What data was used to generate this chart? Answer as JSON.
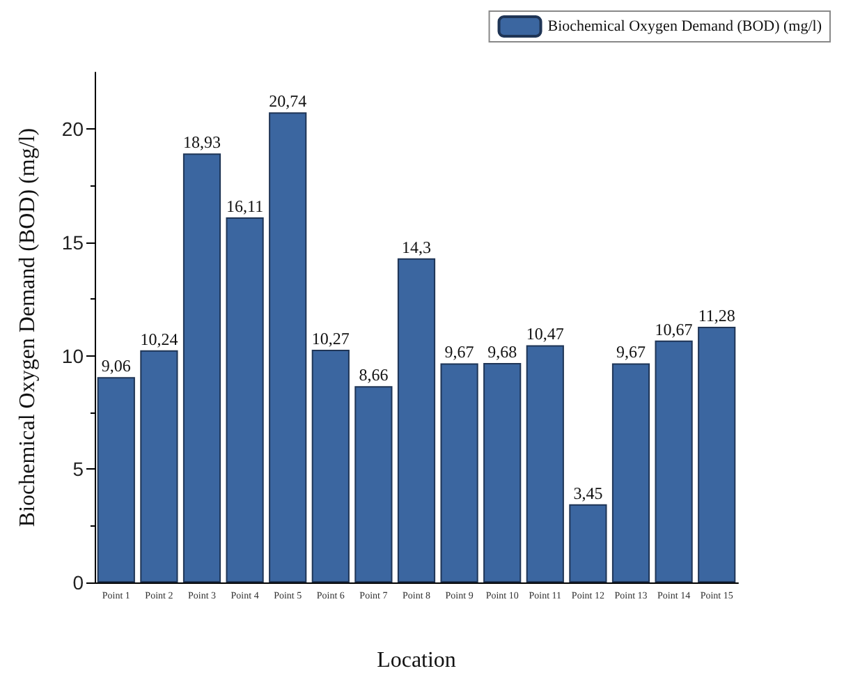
{
  "chart_data": {
    "type": "bar",
    "xlabel": "Location",
    "ylabel": "Biochemical Oxygen Demand (BOD) (mg/l)",
    "categories": [
      "Point 1",
      "Point 2",
      "Point 3",
      "Point 4",
      "Point 5",
      "Point 6",
      "Point 7",
      "Point 8",
      "Point 9",
      "Point 10",
      "Point 11",
      "Point 12",
      "Point 13",
      "Point 14",
      "Point 15"
    ],
    "series": [
      {
        "name": "Biochemical Oxygen Demand (BOD) (mg/l)",
        "color": "#3b66a0",
        "values": [
          9.06,
          10.24,
          18.93,
          16.11,
          20.74,
          10.27,
          8.66,
          14.3,
          9.67,
          9.68,
          10.47,
          3.45,
          9.67,
          10.67,
          11.28
        ],
        "value_labels": [
          "9,06",
          "10,24",
          "18,93",
          "16,11",
          "20,74",
          "10,27",
          "8,66",
          "14,3",
          "9,67",
          "9,68",
          "10,47",
          "3,45",
          "9,67",
          "10,67",
          "11,28"
        ]
      }
    ],
    "ylim": [
      0,
      22.5
    ],
    "yticks": [
      0,
      5,
      10,
      15,
      20
    ],
    "grid": false,
    "legend": "top right"
  }
}
